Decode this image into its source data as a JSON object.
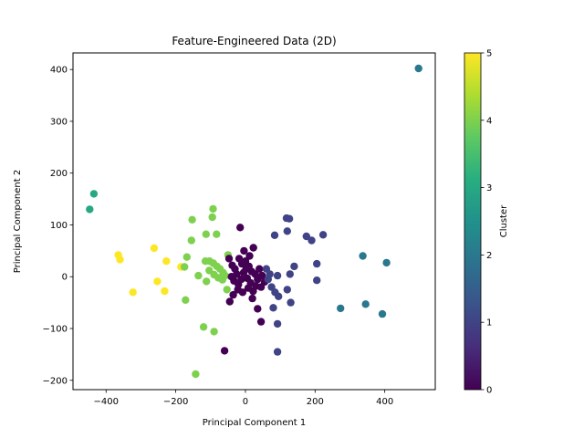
{
  "chart_data": {
    "type": "scatter",
    "title": "Feature-Engineered Data (2D)",
    "xlabel": "Principal Component 1",
    "ylabel": "Principal Component 2",
    "xlim": [
      -495,
      545
    ],
    "ylim": [
      -218,
      432
    ],
    "xticks": [
      -400,
      -200,
      0,
      200,
      400
    ],
    "yticks": [
      -200,
      -100,
      0,
      100,
      200,
      300,
      400
    ],
    "grid": false,
    "colorbar": {
      "label": "Cluster",
      "range": [
        0,
        5
      ],
      "ticks": [
        0,
        1,
        2,
        3,
        4,
        5
      ],
      "colormap": "viridis"
    },
    "points": [
      {
        "x": 497,
        "y": 402,
        "c": 2
      },
      {
        "x": 405,
        "y": 27,
        "c": 2
      },
      {
        "x": 337,
        "y": 40,
        "c": 2
      },
      {
        "x": 345,
        "y": -53,
        "c": 2
      },
      {
        "x": 393,
        "y": -72,
        "c": 2
      },
      {
        "x": 273,
        "y": -61,
        "c": 2
      },
      {
        "x": -435,
        "y": 160,
        "c": 3
      },
      {
        "x": -447,
        "y": 130,
        "c": 3
      },
      {
        "x": -365,
        "y": 42,
        "c": 5
      },
      {
        "x": -360,
        "y": 33,
        "c": 5
      },
      {
        "x": -262,
        "y": 55,
        "c": 5
      },
      {
        "x": -227,
        "y": 30,
        "c": 5
      },
      {
        "x": -253,
        "y": -9,
        "c": 5
      },
      {
        "x": -232,
        "y": -28,
        "c": 5
      },
      {
        "x": -323,
        "y": -30,
        "c": 5
      },
      {
        "x": -185,
        "y": 19,
        "c": 5
      },
      {
        "x": -93,
        "y": 131,
        "c": 4
      },
      {
        "x": -95,
        "y": 115,
        "c": 4
      },
      {
        "x": -153,
        "y": 110,
        "c": 4
      },
      {
        "x": -113,
        "y": 82,
        "c": 4
      },
      {
        "x": -83,
        "y": 82,
        "c": 4
      },
      {
        "x": -155,
        "y": 70,
        "c": 4
      },
      {
        "x": -168,
        "y": 38,
        "c": 4
      },
      {
        "x": -175,
        "y": 19,
        "c": 4
      },
      {
        "x": -135,
        "y": 2,
        "c": 4
      },
      {
        "x": -115,
        "y": 30,
        "c": 4
      },
      {
        "x": -103,
        "y": 30,
        "c": 4
      },
      {
        "x": -92,
        "y": 26,
        "c": 4
      },
      {
        "x": -82,
        "y": 20,
        "c": 4
      },
      {
        "x": -73,
        "y": 15,
        "c": 4
      },
      {
        "x": -64,
        "y": 8,
        "c": 4
      },
      {
        "x": -104,
        "y": 12,
        "c": 4
      },
      {
        "x": -90,
        "y": 4,
        "c": 4
      },
      {
        "x": -78,
        "y": -2,
        "c": 4
      },
      {
        "x": -66,
        "y": -6,
        "c": 4
      },
      {
        "x": -58,
        "y": 2,
        "c": 4
      },
      {
        "x": -112,
        "y": -9,
        "c": 4
      },
      {
        "x": -50,
        "y": 42,
        "c": 4
      },
      {
        "x": -53,
        "y": -25,
        "c": 4
      },
      {
        "x": -172,
        "y": -45,
        "c": 4
      },
      {
        "x": -120,
        "y": -97,
        "c": 4
      },
      {
        "x": -90,
        "y": -106,
        "c": 4
      },
      {
        "x": -143,
        "y": -188,
        "c": 4
      },
      {
        "x": -15,
        "y": 95,
        "c": 0
      },
      {
        "x": 23,
        "y": 56,
        "c": 0
      },
      {
        "x": -4,
        "y": 50,
        "c": 0
      },
      {
        "x": -47,
        "y": 35,
        "c": 0
      },
      {
        "x": -38,
        "y": 22,
        "c": 0
      },
      {
        "x": -30,
        "y": 15,
        "c": 0
      },
      {
        "x": -25,
        "y": 5,
        "c": 0
      },
      {
        "x": -40,
        "y": 0,
        "c": 0
      },
      {
        "x": -33,
        "y": -8,
        "c": 0
      },
      {
        "x": -20,
        "y": -15,
        "c": 0
      },
      {
        "x": -10,
        "y": 25,
        "c": 0
      },
      {
        "x": 0,
        "y": 30,
        "c": 0
      },
      {
        "x": 10,
        "y": 20,
        "c": 0
      },
      {
        "x": 18,
        "y": 10,
        "c": 0
      },
      {
        "x": 28,
        "y": 5,
        "c": 0
      },
      {
        "x": 35,
        "y": -5,
        "c": 0
      },
      {
        "x": 40,
        "y": 15,
        "c": 0
      },
      {
        "x": 48,
        "y": 2,
        "c": 0
      },
      {
        "x": 55,
        "y": -10,
        "c": 0
      },
      {
        "x": -5,
        "y": 8,
        "c": 0
      },
      {
        "x": 5,
        "y": -3,
        "c": 0
      },
      {
        "x": 15,
        "y": -12,
        "c": 0
      },
      {
        "x": -12,
        "y": -5,
        "c": 0
      },
      {
        "x": -22,
        "y": -25,
        "c": 0
      },
      {
        "x": -8,
        "y": -30,
        "c": 0
      },
      {
        "x": 8,
        "y": -22,
        "c": 0
      },
      {
        "x": 22,
        "y": -28,
        "c": 0
      },
      {
        "x": 30,
        "y": -18,
        "c": 0
      },
      {
        "x": 45,
        "y": -20,
        "c": 0
      },
      {
        "x": -45,
        "y": -48,
        "c": 0
      },
      {
        "x": 20,
        "y": -42,
        "c": 0
      },
      {
        "x": 35,
        "y": -62,
        "c": 0
      },
      {
        "x": 45,
        "y": -87,
        "c": 0
      },
      {
        "x": -60,
        "y": -143,
        "c": 0
      },
      {
        "x": -35,
        "y": -35,
        "c": 0
      },
      {
        "x": 2,
        "y": 15,
        "c": 0
      },
      {
        "x": -18,
        "y": 35,
        "c": 0
      },
      {
        "x": 12,
        "y": 40,
        "c": 0
      },
      {
        "x": 118,
        "y": 113,
        "c": 1
      },
      {
        "x": 126,
        "y": 112,
        "c": 1
      },
      {
        "x": 84,
        "y": 80,
        "c": 1
      },
      {
        "x": 120,
        "y": 88,
        "c": 1
      },
      {
        "x": 175,
        "y": 78,
        "c": 1
      },
      {
        "x": 190,
        "y": 70,
        "c": 1
      },
      {
        "x": 223,
        "y": 81,
        "c": 1
      },
      {
        "x": 140,
        "y": 20,
        "c": 1
      },
      {
        "x": 205,
        "y": 25,
        "c": 1
      },
      {
        "x": 92,
        "y": 2,
        "c": 1
      },
      {
        "x": 128,
        "y": 5,
        "c": 1
      },
      {
        "x": 60,
        "y": 15,
        "c": 1
      },
      {
        "x": 70,
        "y": 5,
        "c": 1
      },
      {
        "x": 65,
        "y": -5,
        "c": 1
      },
      {
        "x": 75,
        "y": -20,
        "c": 1
      },
      {
        "x": 85,
        "y": -30,
        "c": 1
      },
      {
        "x": 95,
        "y": -38,
        "c": 1
      },
      {
        "x": 120,
        "y": -25,
        "c": 1
      },
      {
        "x": 130,
        "y": -50,
        "c": 1
      },
      {
        "x": 205,
        "y": -7,
        "c": 1
      },
      {
        "x": 80,
        "y": -60,
        "c": 1
      },
      {
        "x": 92,
        "y": -91,
        "c": 1
      },
      {
        "x": 92,
        "y": -145,
        "c": 1
      }
    ]
  }
}
